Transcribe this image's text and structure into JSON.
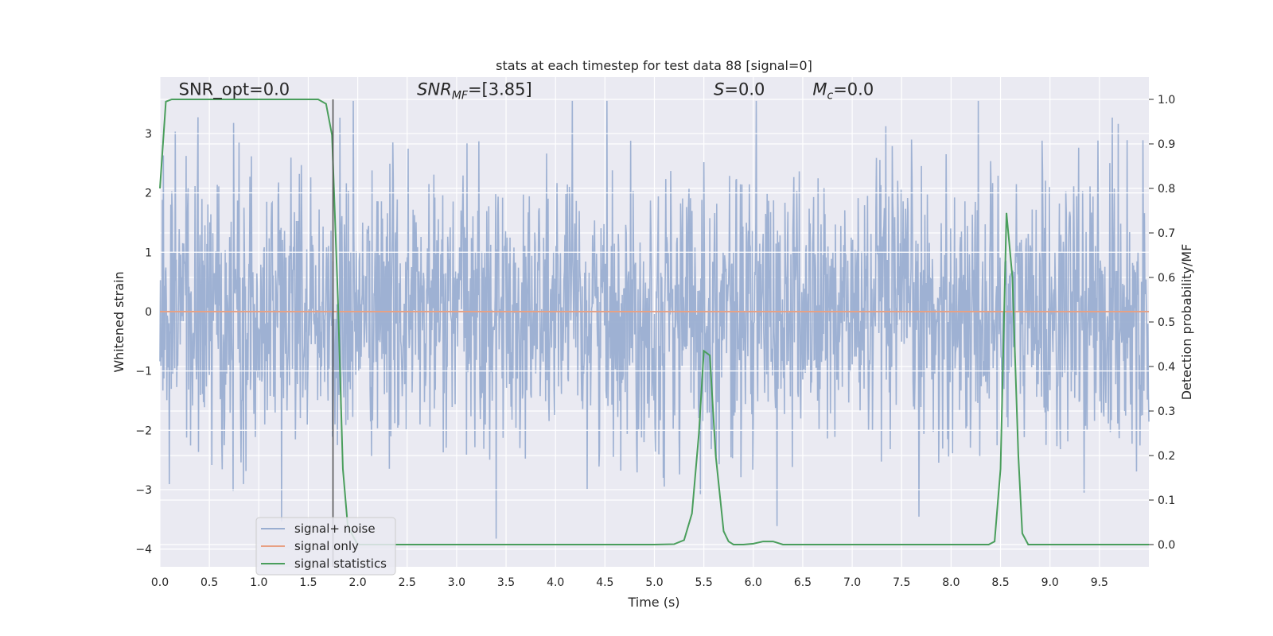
{
  "chart_data": {
    "type": "line",
    "title": "stats at each timestep for test data 88 [signal=0]",
    "xlabel": "Time (s)",
    "ylabel": "Whitened strain",
    "y2label": "Detection probability/MF",
    "xlim": [
      0.0,
      10.0
    ],
    "ylim": [
      -4.3,
      3.95
    ],
    "y2lim": [
      -0.05,
      1.05
    ],
    "x_ticks": [
      0.0,
      0.5,
      1.0,
      1.5,
      2.0,
      2.5,
      3.0,
      3.5,
      4.0,
      4.5,
      5.0,
      5.5,
      6.0,
      6.5,
      7.0,
      7.5,
      8.0,
      8.5,
      9.0,
      9.5
    ],
    "x_tick_labels": [
      "0.0",
      "0.5",
      "1.0",
      "1.5",
      "2.0",
      "2.5",
      "3.0",
      "3.5",
      "4.0",
      "4.5",
      "5.0",
      "5.5",
      "6.0",
      "6.5",
      "7.0",
      "7.5",
      "8.0",
      "8.5",
      "9.0",
      "9.5"
    ],
    "y_ticks": [
      -4,
      -3,
      -2,
      -1,
      0,
      1,
      2,
      3
    ],
    "y_tick_labels": [
      "−4",
      "−3",
      "−2",
      "−1",
      "0",
      "1",
      "2",
      "3"
    ],
    "y2_ticks": [
      0.0,
      0.1,
      0.2,
      0.3,
      0.4,
      0.5,
      0.6,
      0.7,
      0.8,
      0.9,
      1.0
    ],
    "y2_tick_labels": [
      "0.0",
      "0.1",
      "0.2",
      "0.3",
      "0.4",
      "0.5",
      "0.6",
      "0.7",
      "0.8",
      "0.9",
      "1.0"
    ],
    "grid": true,
    "legend_placement": "lower-left",
    "vline_x": 1.75,
    "annotations": [
      {
        "text": "SNR_opt=0.0",
        "x": 0.19,
        "y": 3.65
      },
      {
        "text_main": "SNR",
        "text_sub": "MF",
        "text_rest": "=[3.85]",
        "x": 2.6,
        "y": 3.65
      },
      {
        "text_main": "S",
        "text_sub": "",
        "text_rest": "=0.0",
        "x": 5.6,
        "y": 3.65
      },
      {
        "text_main": "M",
        "text_sub": "c",
        "text_rest": "=0.0",
        "x": 6.6,
        "y": 3.65
      }
    ],
    "series": [
      {
        "name": "signal+ noise",
        "color": "#9aaed1",
        "axis": "left",
        "kind": "noise",
        "sample_rate": 200,
        "noise_std": 1.15,
        "seed": 88
      },
      {
        "name": "signal only",
        "color": "#e8a083",
        "axis": "left",
        "x": [
          0.0,
          10.0
        ],
        "values": [
          0.0,
          0.0
        ]
      },
      {
        "name": "signal statistics",
        "color": "#4a9e5c",
        "axis": "right",
        "x": [
          0.0,
          0.06,
          0.12,
          0.5,
          1.0,
          1.5,
          1.6,
          1.68,
          1.74,
          1.8,
          1.85,
          1.9,
          2.0,
          2.2,
          2.5,
          3.0,
          4.0,
          5.0,
          5.2,
          5.3,
          5.38,
          5.45,
          5.5,
          5.56,
          5.62,
          5.7,
          5.75,
          5.8,
          5.9,
          6.0,
          6.1,
          6.2,
          6.3,
          6.5,
          7.0,
          8.0,
          8.38,
          8.44,
          8.5,
          8.56,
          8.62,
          8.68,
          8.72,
          8.78,
          9.0,
          10.0
        ],
        "values": [
          0.8,
          0.995,
          1.0,
          1.0,
          1.0,
          1.0,
          1.0,
          0.99,
          0.92,
          0.55,
          0.17,
          0.04,
          0.0,
          0.0,
          0.0,
          0.0,
          0.0,
          0.0,
          0.001,
          0.01,
          0.07,
          0.25,
          0.435,
          0.425,
          0.2,
          0.03,
          0.007,
          0.0,
          0.0,
          0.002,
          0.007,
          0.007,
          0.0,
          0.0,
          0.0,
          0.0,
          0.0,
          0.007,
          0.17,
          0.745,
          0.6,
          0.2,
          0.025,
          0.0,
          0.0,
          0.0
        ]
      }
    ]
  }
}
